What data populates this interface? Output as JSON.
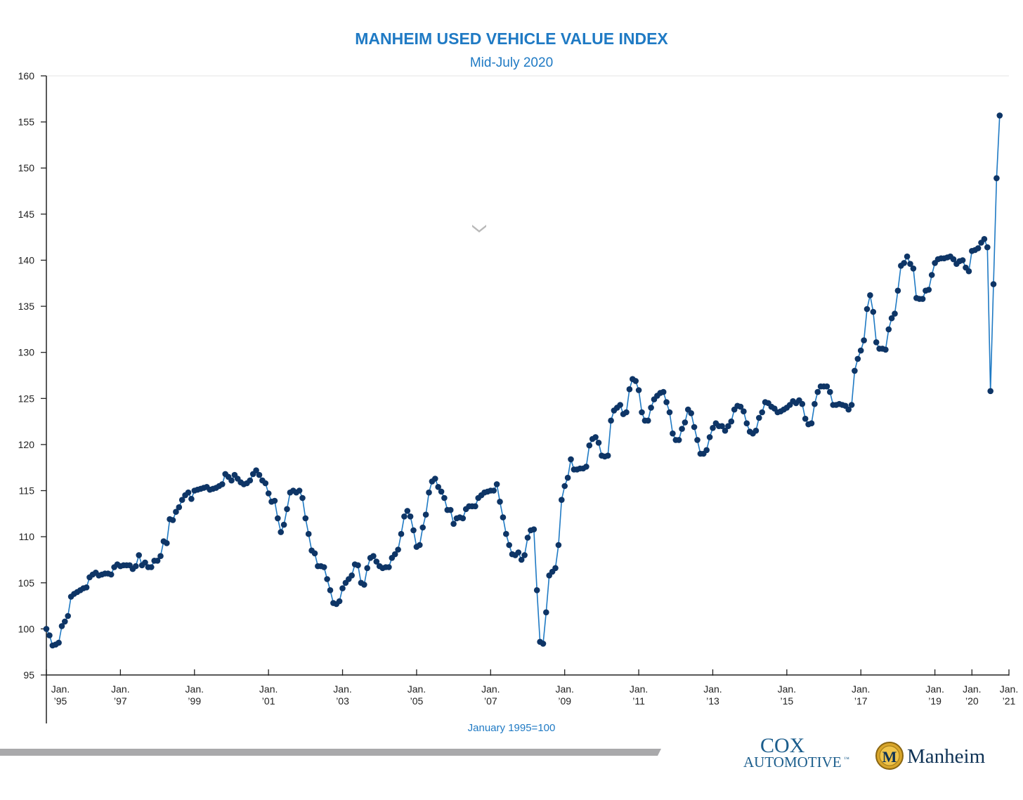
{
  "chart_data": {
    "type": "line",
    "title": "MANHEIM USED VEHICLE VALUE INDEX",
    "subtitle": "Mid-July 2020",
    "note": "January 1995=100",
    "ylim": [
      95,
      160
    ],
    "yticks": [
      95,
      100,
      105,
      110,
      115,
      120,
      125,
      130,
      135,
      140,
      145,
      150,
      155,
      160
    ],
    "xlim": [
      1995,
      2021
    ],
    "xticks": [
      {
        "x": 1995,
        "line1": "Jan.",
        "line2": "’95"
      },
      {
        "x": 1997,
        "line1": "Jan.",
        "line2": "’97"
      },
      {
        "x": 1999,
        "line1": "Jan.",
        "line2": "’99"
      },
      {
        "x": 2001,
        "line1": "Jan.",
        "line2": "’01"
      },
      {
        "x": 2003,
        "line1": "Jan.",
        "line2": "’03"
      },
      {
        "x": 2005,
        "line1": "Jan.",
        "line2": "’05"
      },
      {
        "x": 2007,
        "line1": "Jan.",
        "line2": "’07"
      },
      {
        "x": 2009,
        "line1": "Jan.",
        "line2": "’09"
      },
      {
        "x": 2011,
        "line1": "Jan.",
        "line2": "’11"
      },
      {
        "x": 2013,
        "line1": "Jan.",
        "line2": "’13"
      },
      {
        "x": 2015,
        "line1": "Jan.",
        "line2": "’15"
      },
      {
        "x": 2017,
        "line1": "Jan.",
        "line2": "’17"
      },
      {
        "x": 2019,
        "line1": "Jan.",
        "line2": "’19"
      },
      {
        "x": 2020,
        "line1": "Jan.",
        "line2": "’20"
      },
      {
        "x": 2021,
        "line1": "Jan.",
        "line2": "’21"
      }
    ],
    "line_color": "#1f7ac4",
    "marker_color": "#0e3566",
    "grid": false,
    "series": [
      {
        "x_start": "1995-01",
        "step": "monthly",
        "values": [
          100.0,
          99.3,
          98.2,
          98.3,
          98.5,
          100.3,
          100.8,
          101.4,
          103.5,
          103.8,
          104.0,
          104.2,
          104.4,
          104.5,
          105.6,
          105.9,
          106.1,
          105.8,
          105.9,
          106.0,
          106.0,
          105.9,
          106.7,
          107.0,
          106.8,
          106.9,
          106.9,
          106.9,
          106.5,
          106.8,
          108.0,
          106.9,
          107.2,
          106.7,
          106.7,
          107.4,
          107.4,
          107.9,
          109.5,
          109.3,
          111.9,
          111.8,
          112.7,
          113.2,
          114.0,
          114.5,
          114.8,
          114.1,
          115.0,
          115.1,
          115.2,
          115.3,
          115.4,
          115.1,
          115.2,
          115.3,
          115.5,
          115.7,
          116.8,
          116.5,
          116.1,
          116.7,
          116.3,
          115.9,
          115.7,
          115.8,
          116.1,
          116.8,
          117.2,
          116.7,
          116.1,
          115.8,
          114.7,
          113.8,
          113.9,
          112.0,
          110.5,
          111.3,
          113.0,
          114.8,
          115.0,
          114.8,
          115.0,
          114.2,
          112.0,
          110.3,
          108.5,
          108.2,
          106.8,
          106.8,
          106.7,
          105.4,
          104.2,
          102.8,
          102.7,
          103.0,
          104.4,
          105.0,
          105.4,
          105.8,
          107.0,
          106.9,
          105.0,
          104.8,
          106.6,
          107.7,
          107.9,
          107.3,
          106.8,
          106.6,
          106.7,
          106.7,
          107.7,
          108.1,
          108.6,
          110.3,
          112.2,
          112.8,
          112.2,
          110.7,
          108.9,
          109.1,
          111.0,
          112.4,
          114.8,
          116.0,
          116.3,
          115.4,
          114.9,
          114.2,
          112.9,
          112.9,
          111.4,
          112.0,
          112.1,
          112.0,
          113.0,
          113.3,
          113.3,
          113.3,
          114.2,
          114.5,
          114.8,
          114.9,
          115.0,
          115.0,
          115.7,
          113.8,
          112.1,
          110.3,
          109.1,
          108.1,
          108.0,
          108.3,
          107.5,
          108.0,
          109.9,
          110.7,
          110.8,
          104.2,
          98.6,
          98.4,
          101.8,
          105.8,
          106.2,
          106.6,
          109.1,
          114.0,
          115.5,
          116.4,
          118.4,
          117.3,
          117.3,
          117.4,
          117.4,
          117.6,
          119.9,
          120.6,
          120.8,
          120.2,
          118.8,
          118.7,
          118.8,
          122.6,
          123.7,
          124.0,
          124.3,
          123.3,
          123.5,
          126.0,
          127.1,
          126.9,
          125.9,
          123.5,
          122.6,
          122.6,
          124.0,
          124.9,
          125.3,
          125.6,
          125.7,
          124.6,
          123.5,
          121.2,
          120.5,
          120.5,
          121.7,
          122.4,
          123.8,
          123.4,
          121.9,
          120.5,
          119.0,
          119.0,
          119.4,
          120.8,
          121.8,
          122.3,
          122.0,
          122.0,
          121.5,
          122.0,
          122.5,
          123.8,
          124.2,
          124.1,
          123.6,
          122.3,
          121.4,
          121.2,
          121.5,
          122.9,
          123.5,
          124.6,
          124.5,
          124.1,
          123.9,
          123.5,
          123.6,
          123.8,
          124.0,
          124.3,
          124.7,
          124.5,
          124.8,
          124.4,
          122.8,
          122.2,
          122.3,
          124.4,
          125.7,
          126.3,
          126.3,
          126.3,
          125.7,
          124.3,
          124.3,
          124.4,
          124.3,
          124.2,
          123.8,
          124.3,
          128.0,
          129.3,
          130.2,
          131.3,
          134.7,
          136.2,
          134.4,
          131.1,
          130.4,
          130.4,
          130.3,
          132.5,
          133.7,
          134.2,
          136.7,
          139.4,
          139.7,
          140.4,
          139.6,
          139.1,
          135.9,
          135.8,
          135.8,
          136.7,
          136.8,
          138.4,
          139.7,
          140.1,
          140.2,
          140.2,
          140.3,
          140.4,
          140.1,
          139.6,
          139.9,
          140.0,
          139.2,
          138.8,
          141.0,
          141.1,
          141.3,
          141.9,
          142.3,
          141.4,
          125.8,
          137.4,
          148.9,
          155.7
        ]
      }
    ]
  },
  "logos": {
    "cox_line1": "COX",
    "cox_line2": "AUTOMOTIVE",
    "cox_tm": "™",
    "manheim": "Manheim",
    "manheim_emblem": "M"
  }
}
